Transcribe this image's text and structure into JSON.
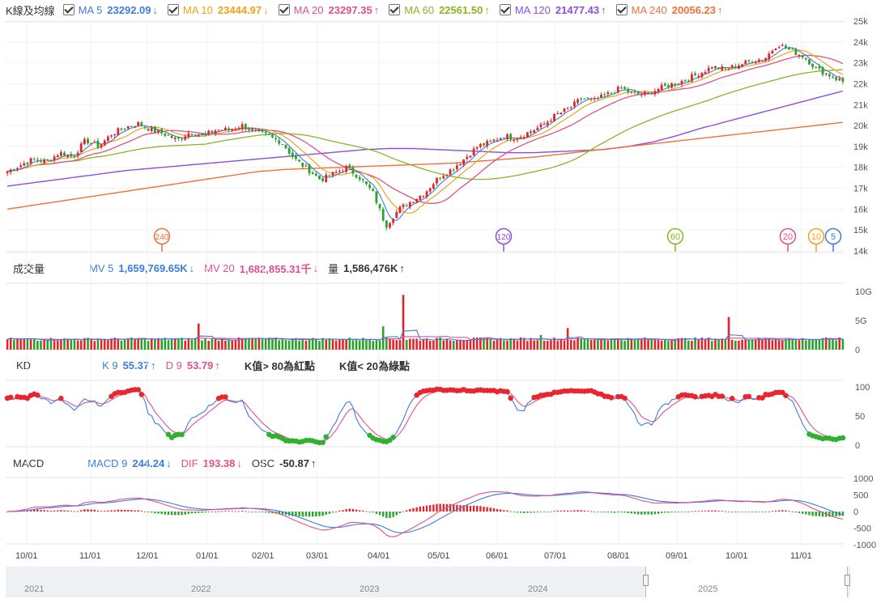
{
  "kline_legend": {
    "label": "K線及均線",
    "items": [
      {
        "name": "MA 5",
        "value": "23292.09",
        "arrow": "↓",
        "color": "#3b7de0"
      },
      {
        "name": "MA 10",
        "value": "23444.97",
        "arrow": "↓",
        "color": "#f0a21b"
      },
      {
        "name": "MA 20",
        "value": "23297.35",
        "arrow": "↑",
        "color": "#e0508a"
      },
      {
        "name": "MA 60",
        "value": "22561.50",
        "arrow": "↑",
        "color": "#8ab52a"
      },
      {
        "name": "MA 120",
        "value": "21477.43",
        "arrow": "↑",
        "color": "#8a4fdc"
      },
      {
        "name": "MA 240",
        "value": "20056.23",
        "arrow": "↑",
        "color": "#f0703a"
      }
    ]
  },
  "volume_legend": {
    "label": "成交量",
    "items": [
      {
        "name": "MV 5",
        "value": "1,659,769.65K",
        "arrow": "↓",
        "color": "#3b7de0"
      },
      {
        "name": "MV 20",
        "value": "1,682,855.31千",
        "arrow": "↓",
        "color": "#e0508a"
      },
      {
        "name": "量",
        "value": "1,586,476K",
        "arrow": "↑",
        "color": "#333333"
      }
    ]
  },
  "kd_legend": {
    "label": "KD",
    "items": [
      {
        "name": "K 9",
        "value": "55.37",
        "arrow": "↑",
        "color": "#3b7de0"
      },
      {
        "name": "D 9",
        "value": "53.79",
        "arrow": "↑",
        "color": "#e0508a"
      }
    ],
    "note_red": "K值> 80為紅點",
    "note_green": "K值< 20為綠點"
  },
  "macd_legend": {
    "label": "MACD",
    "items": [
      {
        "name": "MACD 9",
        "value": "244.24",
        "arrow": "↓",
        "color": "#3b7de0"
      },
      {
        "name": "DIF",
        "value": "193.38",
        "arrow": "↓",
        "color": "#e0508a"
      },
      {
        "name": "OSC",
        "value": "-50.87",
        "arrow": "↑",
        "color": "#333333"
      }
    ]
  },
  "navigator": {
    "years": [
      "2021",
      "2022",
      "2023",
      "2024",
      "2025"
    ]
  },
  "chart_data": {
    "type": "candlestick",
    "x_ticks": [
      "10/01",
      "11/01",
      "12/01",
      "01/01",
      "02/01",
      "03/01",
      "04/01",
      "05/01",
      "06/01",
      "07/01",
      "08/01",
      "09/01",
      "10/01",
      "11/01"
    ],
    "price": {
      "y_range": [
        14000,
        25000
      ],
      "y_ticks": [
        "25k",
        "24k",
        "23k",
        "22k",
        "21k",
        "20k",
        "19k",
        "18k",
        "17k",
        "16k",
        "15k",
        "14k"
      ],
      "close_path": [
        17800,
        18100,
        18400,
        18250,
        18700,
        18500,
        19300,
        19000,
        19600,
        19900,
        20100,
        19800,
        19600,
        19300,
        19700,
        19500,
        19800,
        19800,
        20000,
        19700,
        19500,
        19200,
        18400,
        17900,
        17400,
        17700,
        18000,
        17500,
        16800,
        15200,
        16000,
        16400,
        16800,
        17500,
        17900,
        18400,
        19000,
        19200,
        19500,
        19400,
        19700,
        20000,
        20500,
        20800,
        21300,
        21200,
        21500,
        21800,
        21500,
        21500,
        21800,
        22000,
        22200,
        22500,
        22800,
        22700,
        22900,
        23100,
        23200,
        23900,
        23600,
        23300,
        22700,
        22400,
        22100
      ],
      "ma_lines": [
        {
          "name": "MA 120",
          "points": [
            17100,
            17250,
            17400,
            17550,
            17700,
            17850,
            17950,
            18050,
            18150,
            18250,
            18350,
            18450,
            18550,
            18650,
            18750,
            18850,
            18900,
            18900,
            18850,
            18800,
            18750,
            18700,
            18700,
            18750,
            18800,
            18850,
            19000,
            19200,
            19500,
            19850,
            20150,
            20450,
            20750,
            21050,
            21350,
            21650
          ],
          "color": "#8a4fdc"
        },
        {
          "name": "MA 240",
          "points": [
            16000,
            16200,
            16400,
            16600,
            16800,
            17000,
            17200,
            17400,
            17600,
            17800,
            17900,
            17950,
            18000,
            18050,
            18100,
            18150,
            18200,
            18300,
            18400,
            18500,
            18650,
            18800,
            18950,
            19100,
            19250,
            19400,
            19550,
            19700,
            19850,
            20000,
            20150
          ],
          "color": "#f0703a"
        }
      ],
      "markers": [
        "240",
        "120",
        "60",
        "20",
        "10",
        "5"
      ]
    },
    "volume": {
      "y_range": [
        0,
        10
      ],
      "y_ticks": [
        "10G",
        "5G",
        "0"
      ],
      "unit": "G"
    },
    "kd": {
      "y_range": [
        0,
        100
      ],
      "y_ticks": [
        "100",
        "50",
        "0"
      ]
    },
    "macd": {
      "y_range": [
        -1000,
        1000
      ],
      "y_ticks": [
        "1000",
        "500",
        "0",
        "-500",
        "-1000"
      ]
    }
  }
}
